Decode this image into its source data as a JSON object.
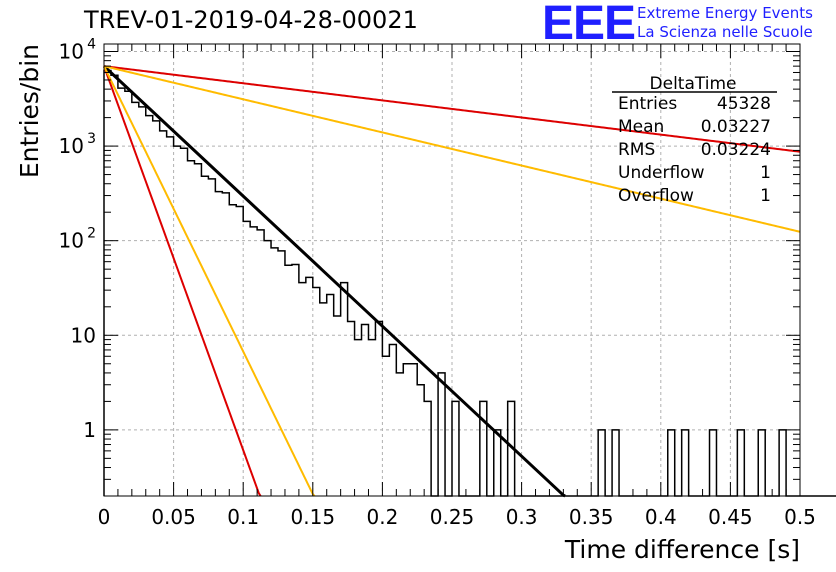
{
  "header": {
    "title": "TREV-01-2019-04-28-00021",
    "logo_text": "EEE",
    "logo_line1": "Extreme Energy Events",
    "logo_line2": "La Scienza nelle Scuole"
  },
  "stats": {
    "name": "DeltaTime",
    "rows": [
      {
        "label": "Entries",
        "value": "45328"
      },
      {
        "label": "Mean",
        "value": "0.03227"
      },
      {
        "label": "RMS",
        "value": "0.03224"
      },
      {
        "label": "Underflow",
        "value": "1"
      },
      {
        "label": "Overflow",
        "value": "1"
      }
    ]
  },
  "chart_data": {
    "type": "histogram",
    "xlabel": "Time difference [s]",
    "ylabel": "Entries/bin",
    "xlim": [
      0,
      0.5
    ],
    "ylim": [
      0.2,
      12000
    ],
    "yscale": "log",
    "grid": true,
    "stats_box_placement": "top-right",
    "x_ticks": [
      {
        "v": 0,
        "label": "0"
      },
      {
        "v": 0.05,
        "label": "0.05"
      },
      {
        "v": 0.1,
        "label": "0.1"
      },
      {
        "v": 0.15,
        "label": "0.15"
      },
      {
        "v": 0.2,
        "label": "0.2"
      },
      {
        "v": 0.25,
        "label": "0.25"
      },
      {
        "v": 0.3,
        "label": "0.3"
      },
      {
        "v": 0.35,
        "label": "0.35"
      },
      {
        "v": 0.4,
        "label": "0.4"
      },
      {
        "v": 0.45,
        "label": "0.45"
      },
      {
        "v": 0.5,
        "label": "0.5"
      }
    ],
    "y_ticks": [
      {
        "v": 1,
        "label": "1"
      },
      {
        "v": 10,
        "label": "10"
      },
      {
        "v": 100,
        "label": "10",
        "exp": "2"
      },
      {
        "v": 1000,
        "label": "10",
        "exp": "3"
      },
      {
        "v": 10000,
        "label": "10",
        "exp": "4"
      }
    ],
    "bin_width": 0.005,
    "histogram": {
      "color": "#000000",
      "values": [
        6000,
        5300,
        4300,
        3700,
        3100,
        2500,
        2200,
        1800,
        1500,
        1300,
        1050,
        900,
        760,
        620,
        520,
        430,
        370,
        300,
        250,
        215,
        180,
        150,
        125,
        105,
        88,
        74,
        63,
        52,
        45,
        38,
        33,
        27,
        24,
        20,
        18,
        15,
        12,
        10,
        9,
        8,
        7,
        6,
        5,
        4.5,
        3.7,
        3.2,
        2.6,
        2.2,
        1.9,
        1.6,
        1.4,
        1.2,
        1.0,
        0.9,
        0.8,
        0.7,
        0.6,
        0.5,
        0.45,
        0.4,
        0.35,
        0.3,
        0.27,
        0.24,
        0.21,
        0.2
      ],
      "observed": [
        6300,
        5600,
        4100,
        3800,
        2900,
        2600,
        2100,
        1850,
        1450,
        1250,
        1000,
        950,
        700,
        650,
        480,
        450,
        330,
        320,
        240,
        230,
        160,
        140,
        130,
        100,
        84,
        78,
        55,
        56,
        36,
        41,
        32,
        22,
        27,
        16,
        36,
        14,
        9,
        13,
        9,
        14,
        6,
        8,
        4,
        5,
        5,
        3,
        2,
        0,
        4,
        0,
        2,
        0,
        0,
        0,
        2,
        0,
        1,
        0,
        2,
        0,
        0,
        0,
        0,
        0,
        0,
        0,
        0,
        0,
        0,
        0,
        0,
        1,
        0,
        1,
        0,
        0,
        0,
        0,
        0,
        0,
        0,
        1,
        0,
        1,
        0,
        0,
        0,
        1,
        0,
        0,
        0,
        1,
        0,
        0,
        1,
        0,
        0,
        1,
        0,
        0,
        1,
        0,
        0,
        0,
        0,
        0,
        0,
        0,
        0,
        0,
        0,
        0,
        0,
        0,
        0,
        0
      ]
    },
    "fits": [
      {
        "color": "#000000",
        "width": 3,
        "A": 7000,
        "tau": 0.0316
      },
      {
        "color": "#dd0000",
        "width": 2,
        "A": 7000,
        "tau": 0.24
      },
      {
        "color": "#ffbb00",
        "width": 2,
        "A": 7000,
        "tau": 0.124
      },
      {
        "color": "#dd0000",
        "width": 2,
        "A": 7000,
        "tau": 0.0107
      },
      {
        "color": "#ffbb00",
        "width": 2,
        "A": 7000,
        "tau": 0.0144
      }
    ]
  }
}
